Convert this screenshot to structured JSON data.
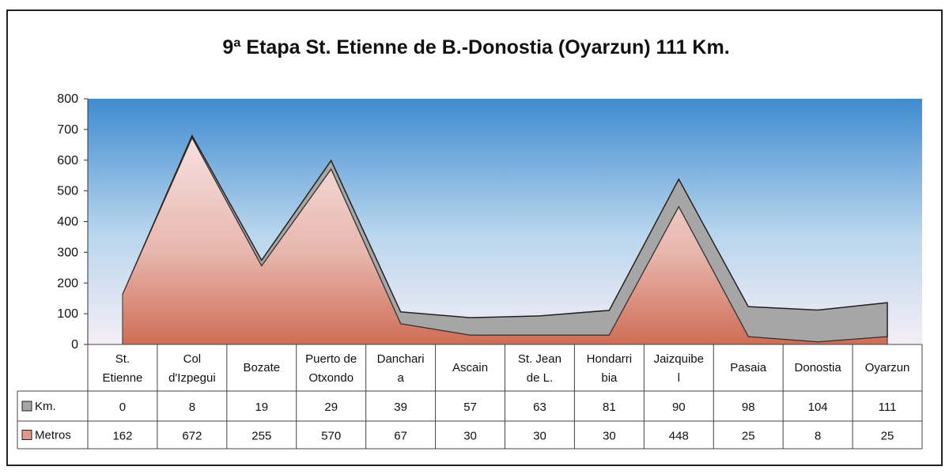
{
  "chart_data": {
    "type": "area",
    "title": "9ª Etapa  St. Etienne de B.-Donostia (Oyarzun)  111 Km.",
    "categories": [
      [
        "St.",
        "Etienne"
      ],
      [
        "Col",
        "d'Izpegui"
      ],
      [
        "Bozate"
      ],
      [
        "Puerto de",
        "Otxondo"
      ],
      [
        "Danchari",
        "a"
      ],
      [
        "Ascain"
      ],
      [
        "St. Jean",
        "de L."
      ],
      [
        "Hondarri",
        "bia"
      ],
      [
        "Jaizquibe",
        "l"
      ],
      [
        "Pasaia"
      ],
      [
        "Donostia"
      ],
      [
        "Oyarzun"
      ]
    ],
    "series": [
      {
        "name": "Km.",
        "values": [
          0,
          8,
          19,
          29,
          39,
          57,
          63,
          81,
          90,
          98,
          104,
          111
        ],
        "color": "#a6a6a6"
      },
      {
        "name": "Metros",
        "values": [
          162,
          672,
          255,
          570,
          67,
          30,
          30,
          30,
          448,
          25,
          8,
          25
        ],
        "color": "#e9a79a"
      }
    ],
    "stacked": true,
    "ylim": [
      0,
      800
    ],
    "yticks": [
      0,
      100,
      200,
      300,
      400,
      500,
      600,
      700,
      800
    ],
    "grid": false,
    "data_table": true,
    "background": "sky gradient blue to white"
  }
}
